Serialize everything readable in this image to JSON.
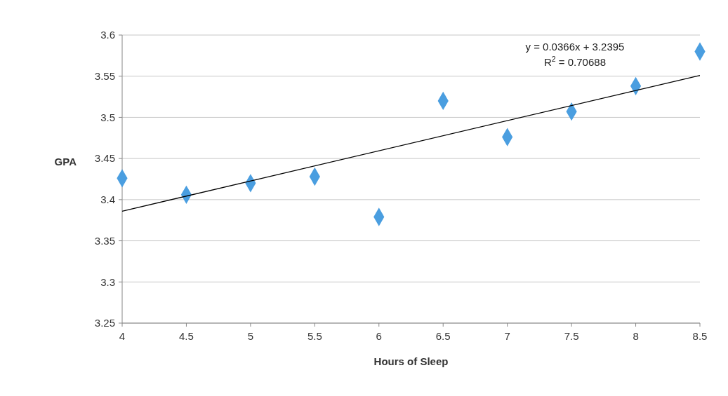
{
  "chart_data": {
    "type": "scatter",
    "xlabel": "Hours of Sleep",
    "ylabel": "GPA",
    "x": [
      4,
      4.5,
      5,
      5.5,
      6,
      6.5,
      7,
      7.5,
      8,
      8.5
    ],
    "series": [
      {
        "color": "#4a9ee0",
        "marker": "diamond",
        "values": [
          3.426,
          3.406,
          3.42,
          3.428,
          3.379,
          3.52,
          3.476,
          3.507,
          3.538,
          3.58
        ]
      },
      {
        "type": "line",
        "color": "#000000",
        "x": [
          4,
          8.5
        ],
        "values": [
          3.386,
          3.551
        ]
      }
    ],
    "xlim": [
      4,
      8.5
    ],
    "xticks": [
      4,
      4.5,
      5,
      5.5,
      6,
      6.5,
      7,
      7.5,
      8,
      8.5
    ],
    "ylim": [
      3.25,
      3.6
    ],
    "yticks": [
      3.25,
      3.3,
      3.35,
      3.4,
      3.45,
      3.5,
      3.55,
      3.6
    ],
    "grid": "y",
    "annotations": [
      "y = 0.0366x + 3.2395",
      "R$^{2}$ = 0.70688"
    ]
  }
}
